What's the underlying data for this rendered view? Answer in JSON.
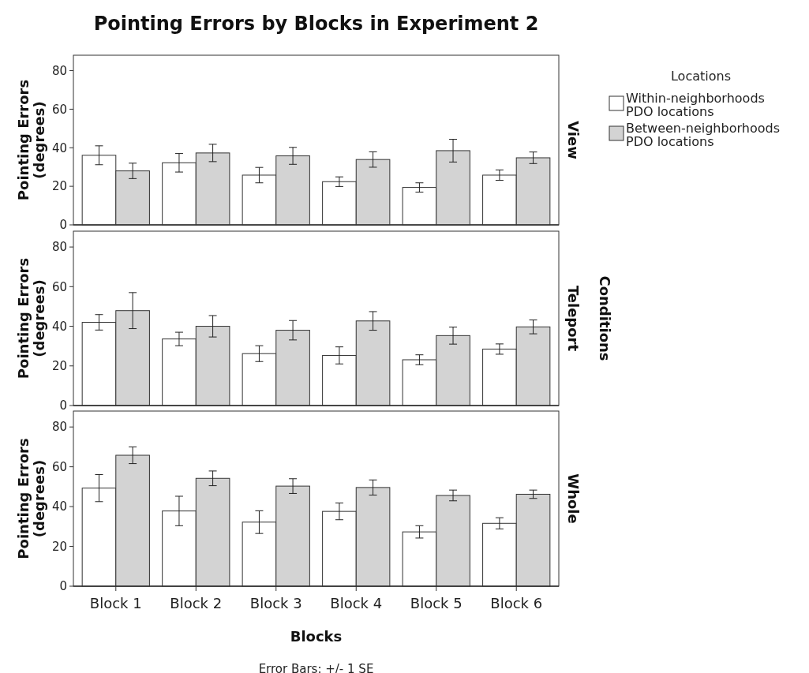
{
  "chart_data": [
    {
      "type": "bar",
      "title": "Pointing Errors by Blocks in Experiment 2",
      "ylabel": "Pointing Errors (degrees)",
      "annotations": [
        "View"
      ],
      "legend_title": "Locations",
      "legend": "top right",
      "tick_labels": "y",
      "categories": [
        null,
        null,
        null,
        null,
        null,
        null
      ],
      "ylim": [
        0,
        88
      ],
      "yticks": [
        0,
        20,
        40,
        60,
        80
      ],
      "series": [
        {
          "name": "Within-neighborhoods PDO locations",
          "color": "#ffffff",
          "values": [
            36.1,
            32.2,
            25.8,
            22.4,
            19.4,
            25.8
          ],
          "errors": [
            4.9,
            4.8,
            4,
            2.5,
            2.4,
            2.7
          ]
        },
        {
          "name": "Between-neighborhoods PDO locations",
          "color": "#d3d3d3",
          "values": [
            28,
            37.3,
            35.8,
            33.9,
            38.5,
            34.8
          ],
          "errors": [
            4,
            4.5,
            4.4,
            4,
            5.9,
            3
          ]
        }
      ]
    },
    {
      "type": "bar",
      "ylabel": "Pointing Errors (degrees)",
      "annotations": [
        "Teleport",
        "Conditions"
      ],
      "tick_labels": "y",
      "categories": [
        null,
        null,
        null,
        null,
        null,
        null
      ],
      "ylim": [
        0,
        88
      ],
      "yticks": [
        0,
        20,
        40,
        60,
        80
      ],
      "series": [
        {
          "color": "#ffffff",
          "values": [
            42,
            33.6,
            26.2,
            25.3,
            23.1,
            28.5
          ],
          "errors": [
            3.9,
            3.4,
            4,
            4.3,
            2.5,
            2.6
          ]
        },
        {
          "color": "#d3d3d3",
          "values": [
            47.9,
            40,
            38,
            42.7,
            35.3,
            39.7
          ],
          "errors": [
            9.1,
            5.4,
            4.9,
            4.7,
            4.3,
            3.5
          ]
        }
      ]
    },
    {
      "type": "bar",
      "ylabel": "Pointing Errors (degrees)",
      "xlabel": "Blocks",
      "annotations": [
        "Whole",
        "Error Bars: +/- 1 SE"
      ],
      "categories": [
        "Block 1",
        "Block 2",
        "Block 3",
        "Block 4",
        "Block 5",
        "Block 6"
      ],
      "ylim": [
        0,
        88
      ],
      "yticks": [
        0,
        20,
        40,
        60,
        80
      ],
      "series": [
        {
          "color": "#ffffff",
          "values": [
            49.3,
            37.8,
            32.2,
            37.6,
            27.3,
            31.6
          ],
          "errors": [
            6.8,
            7.4,
            5.7,
            4.2,
            3.1,
            2.8
          ]
        },
        {
          "color": "#d3d3d3",
          "values": [
            65.8,
            54.2,
            50.3,
            49.6,
            45.6,
            46.2
          ],
          "errors": [
            4.2,
            3.7,
            3.7,
            3.8,
            2.7,
            2.1
          ]
        }
      ]
    }
  ]
}
